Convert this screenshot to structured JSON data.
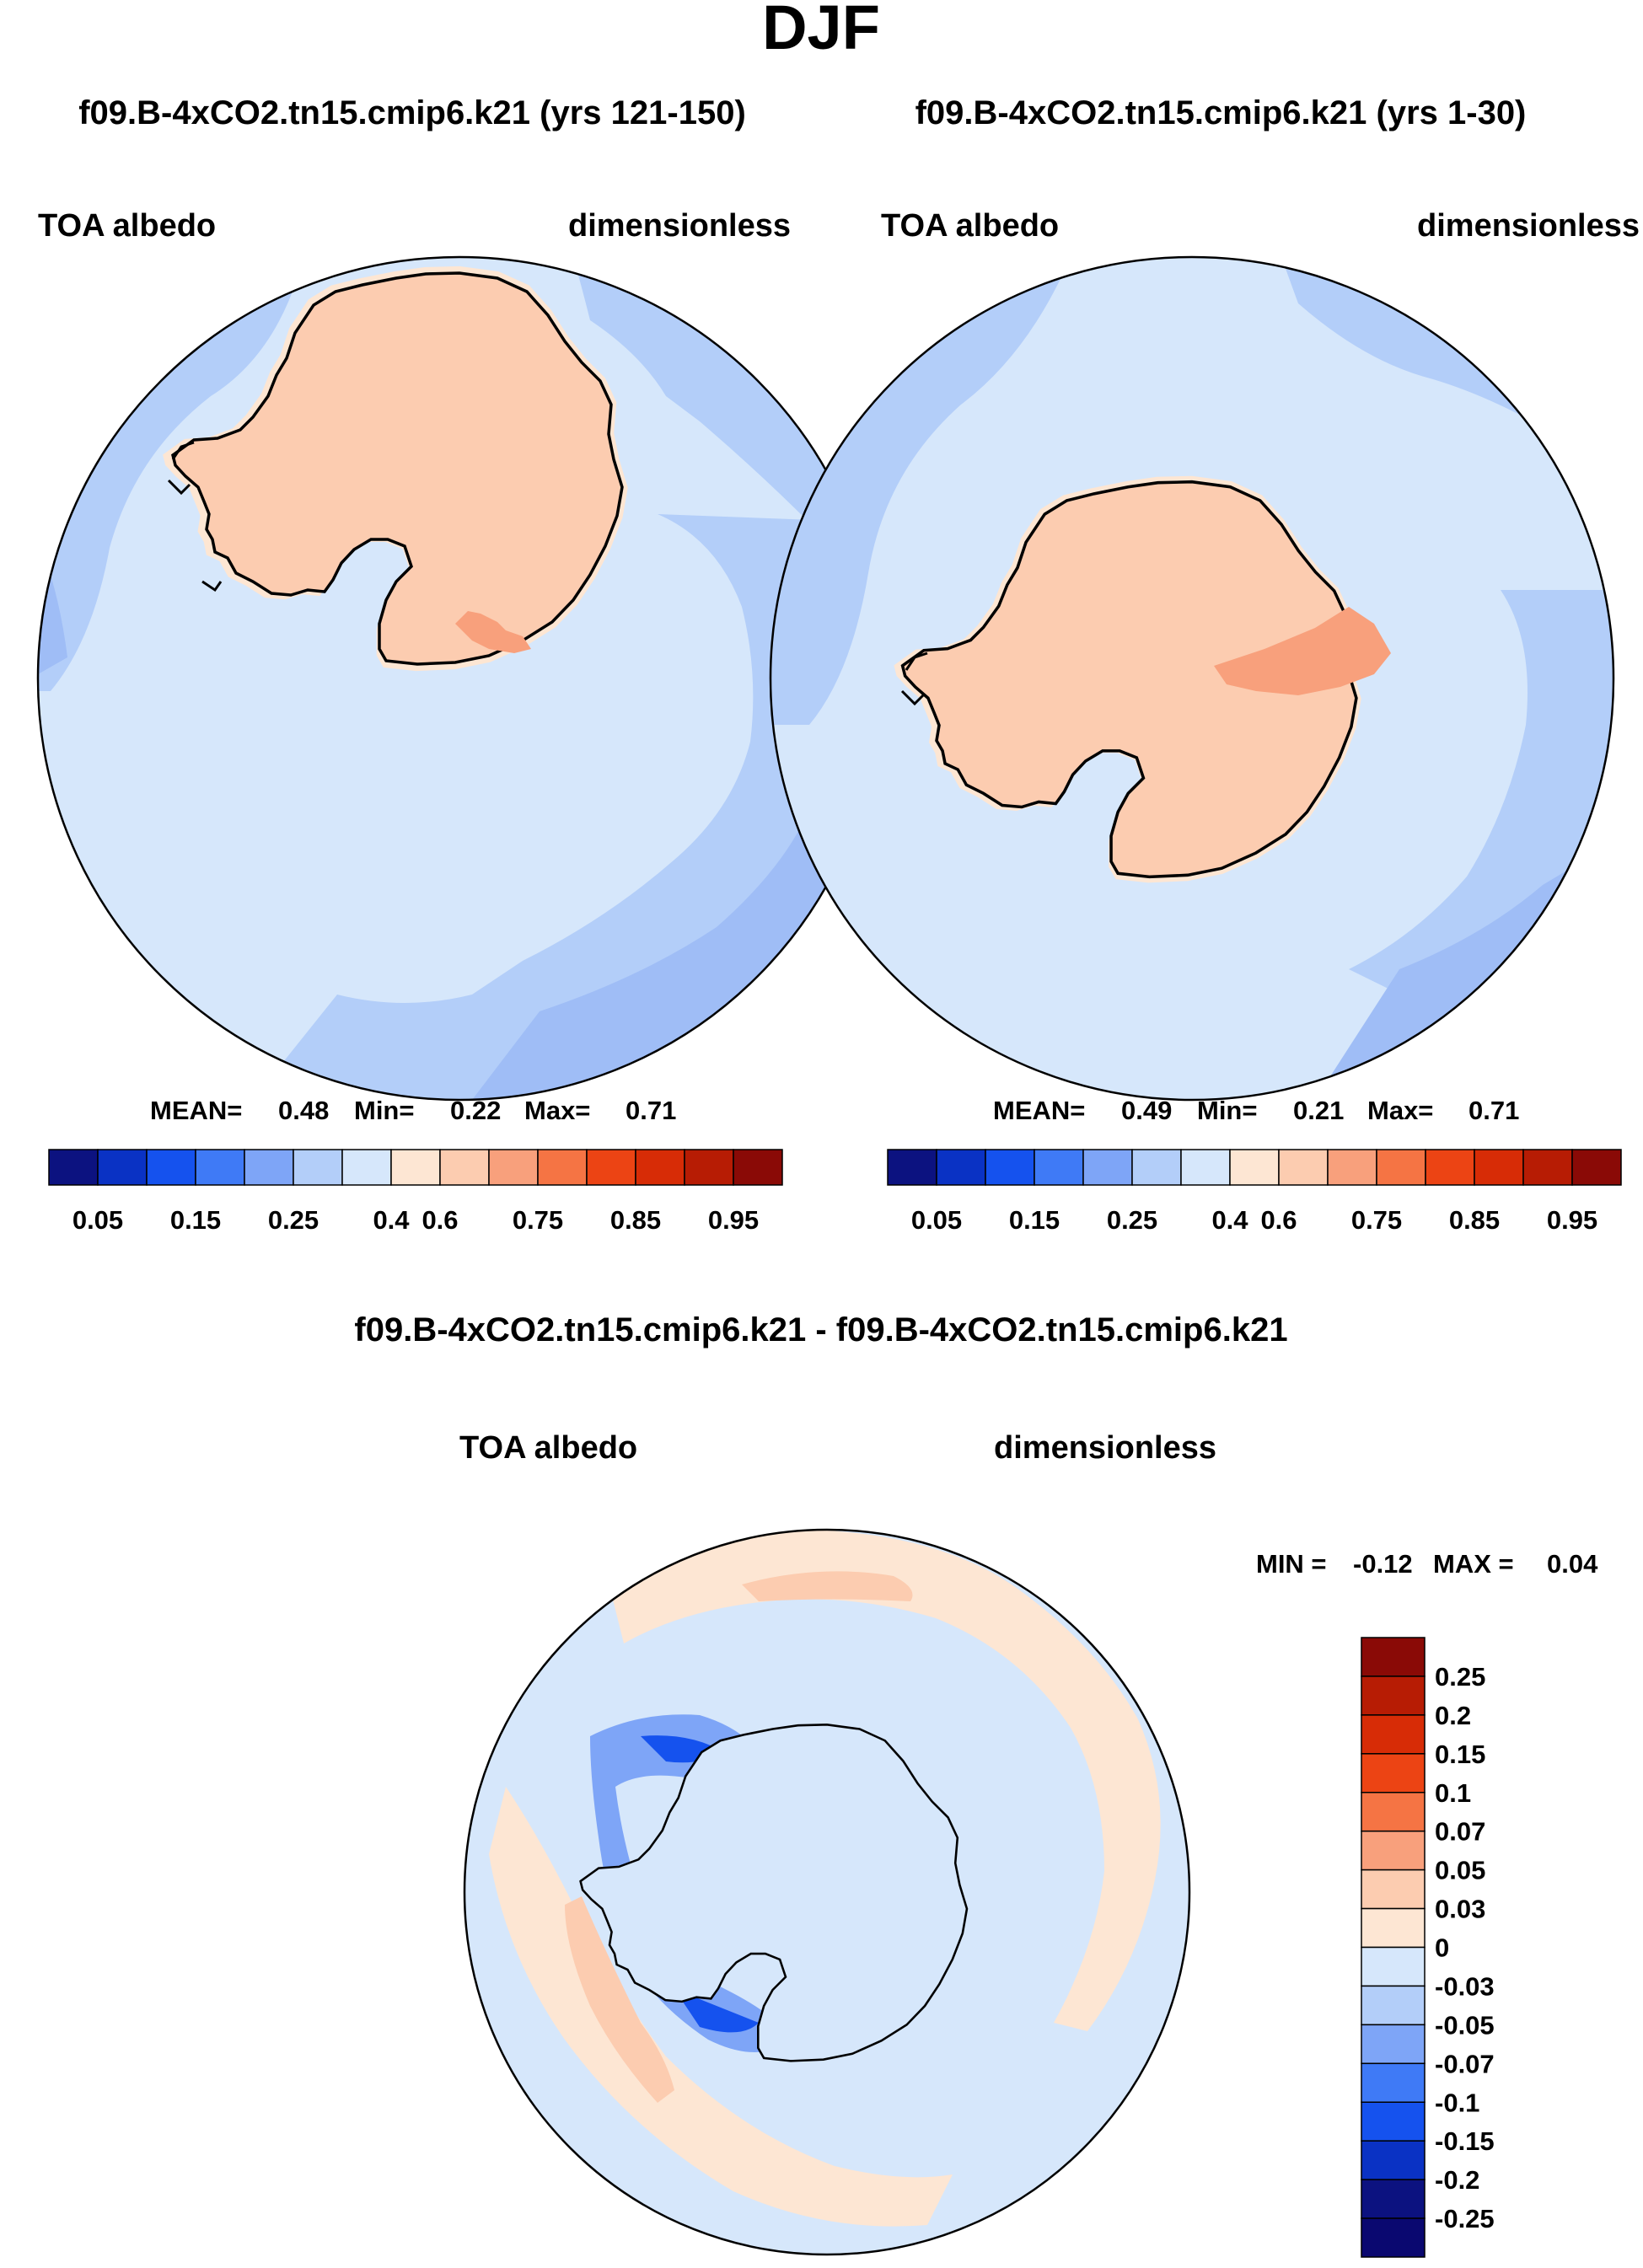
{
  "title": "DJF",
  "colors": {
    "ocean_light": "#d6e7fb",
    "ocean_mid": "#b3cef9",
    "ocean_deep": "#9fbdf6",
    "land": "#fcccb0",
    "land_dark": "#f8a07c",
    "coast": "#000000"
  },
  "panels": [
    {
      "case": "f09.B-4xCO2.tn15.cmip6.k21 (yrs 121-150)",
      "variable": "TOA albedo",
      "units": "dimensionless",
      "stats": {
        "mean_label": "MEAN=",
        "mean": "0.48",
        "min_label": "Min=",
        "min": "0.22",
        "max_label": "Max=",
        "max": "0.71"
      }
    },
    {
      "case": "f09.B-4xCO2.tn15.cmip6.k21 (yrs 1-30)",
      "variable": "TOA albedo",
      "units": "dimensionless",
      "stats": {
        "mean_label": "MEAN=",
        "mean": "0.49",
        "min_label": "Min=",
        "min": "0.21",
        "max_label": "Max=",
        "max": "0.71"
      }
    }
  ],
  "abs_colorbar": {
    "colors": [
      "#0c1280",
      "#0a32c4",
      "#1552ee",
      "#3f7af6",
      "#7ea5f7",
      "#b3cef9",
      "#d6e7fb",
      "#fde6d3",
      "#fcccb0",
      "#f8a07c",
      "#f57444",
      "#ec4414",
      "#d72c06",
      "#b71c04",
      "#8a0a06"
    ],
    "labels": [
      "0.05",
      "0.15",
      "0.25",
      "0.4",
      "0.6",
      "0.75",
      "0.85",
      "0.95"
    ]
  },
  "diff_panel": {
    "case": "f09.B-4xCO2.tn15.cmip6.k21 - f09.B-4xCO2.tn15.cmip6.k21",
    "variable": "TOA albedo",
    "units": "dimensionless",
    "minmax": {
      "min_label": "MIN =",
      "min": "-0.12",
      "max_label": "MAX =",
      "max": "0.04"
    }
  },
  "diff_colorbar": {
    "colors_top_to_bottom": [
      "#8a0a06",
      "#b71c04",
      "#d72c06",
      "#ec4414",
      "#f57444",
      "#f8a07c",
      "#fcccb0",
      "#fde6d3",
      "#d6e7fb",
      "#b3cef9",
      "#7ea5f7",
      "#3f7af6",
      "#1552ee",
      "#0a32c4",
      "#0c1280",
      "#0a0870"
    ],
    "labels": [
      "0.25",
      "0.2",
      "0.15",
      "0.1",
      "0.07",
      "0.05",
      "0.03",
      "0",
      "-0.03",
      "-0.05",
      "-0.07",
      "-0.1",
      "-0.15",
      "-0.2",
      "-0.25"
    ]
  }
}
